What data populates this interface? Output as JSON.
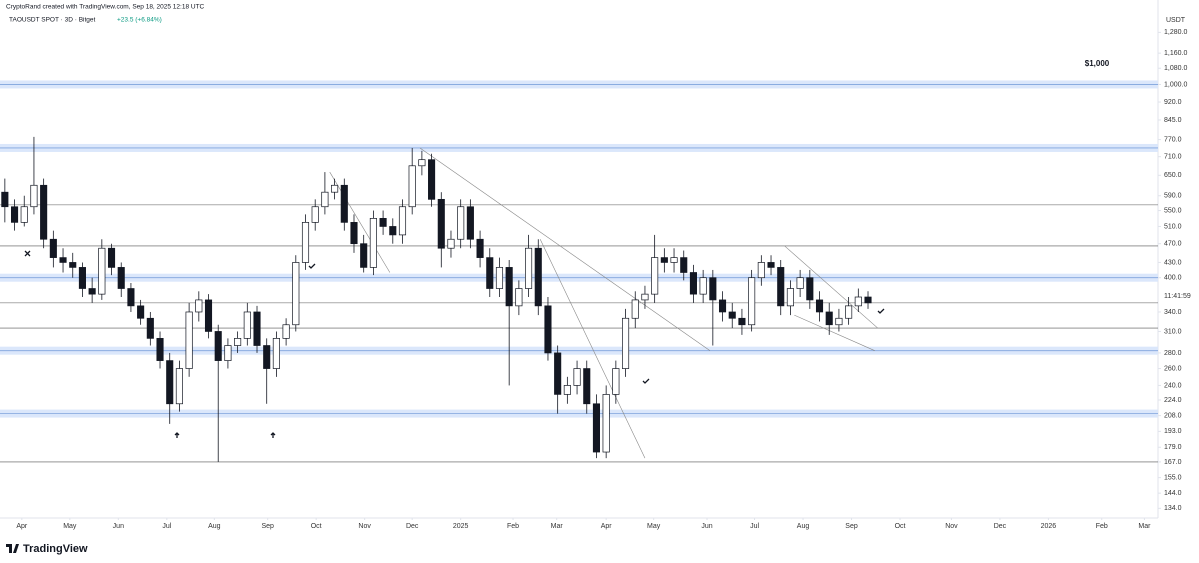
{
  "header": {
    "credit": "CryptoRand created with TradingView.com, Sep 18, 2025 12:18 UTC",
    "symbol": "TAOUSDT SPOT · 3D · Bitget",
    "change": "+23.5 (+6.84%)"
  },
  "brand": "TradingView",
  "chart_data": {
    "type": "candlestick",
    "unit": "USDT",
    "log_scale": true,
    "grid": false,
    "up_color": "#ffffff",
    "down_color": "#131722",
    "border_color": "#131722",
    "annotation": "$1,000",
    "countdown": "11:41:59",
    "ylim": [
      128,
      1410
    ],
    "xlim": [
      -0.5,
      118.9
    ],
    "yticks": [
      {
        "value": 1280,
        "label": "1,280.0"
      },
      {
        "value": 1160,
        "label": "1,160.0"
      },
      {
        "value": 1080,
        "label": "1,080.0"
      },
      {
        "value": 1000,
        "label": "1,000.0"
      },
      {
        "value": 920,
        "label": "920.0"
      },
      {
        "value": 845,
        "label": "845.0"
      },
      {
        "value": 770,
        "label": "770.0"
      },
      {
        "value": 710,
        "label": "710.0"
      },
      {
        "value": 650,
        "label": "650.0"
      },
      {
        "value": 590,
        "label": "590.0"
      },
      {
        "value": 550,
        "label": "550.0"
      },
      {
        "value": 510,
        "label": "510.0"
      },
      {
        "value": 470,
        "label": "470.0"
      },
      {
        "value": 430,
        "label": "430.0"
      },
      {
        "value": 400,
        "label": "400.0"
      },
      {
        "value": 340,
        "label": "340.0"
      },
      {
        "value": 310,
        "label": "310.0"
      },
      {
        "value": 280,
        "label": "280.0"
      },
      {
        "value": 260,
        "label": "260.0"
      },
      {
        "value": 240,
        "label": "240.0"
      },
      {
        "value": 224,
        "label": "224.0"
      },
      {
        "value": 208,
        "label": "208.0"
      },
      {
        "value": 193,
        "label": "193.0"
      },
      {
        "value": 179,
        "label": "179.0"
      },
      {
        "value": 167,
        "label": "167.0"
      },
      {
        "value": 155,
        "label": "155.0"
      },
      {
        "value": 144,
        "label": "144.0"
      },
      {
        "value": 134,
        "label": "134.0"
      }
    ],
    "xticks": [
      {
        "value": 1.75,
        "label": "Apr"
      },
      {
        "value": 6.7,
        "label": "May"
      },
      {
        "value": 11.7,
        "label": "Jun"
      },
      {
        "value": 16.7,
        "label": "Jul"
      },
      {
        "value": 21.6,
        "label": "Aug"
      },
      {
        "value": 27.1,
        "label": "Sep"
      },
      {
        "value": 32.1,
        "label": "Oct"
      },
      {
        "value": 37.1,
        "label": "Nov"
      },
      {
        "value": 42,
        "label": "Dec"
      },
      {
        "value": 47,
        "label": "2025"
      },
      {
        "value": 52.4,
        "label": "Feb"
      },
      {
        "value": 56.9,
        "label": "Mar"
      },
      {
        "value": 62,
        "label": "Apr"
      },
      {
        "value": 66.9,
        "label": "May"
      },
      {
        "value": 72.4,
        "label": "Jun"
      },
      {
        "value": 77.3,
        "label": "Jul"
      },
      {
        "value": 82.3,
        "label": "Aug"
      },
      {
        "value": 87.3,
        "label": "Sep"
      },
      {
        "value": 92.3,
        "label": "Oct"
      },
      {
        "value": 97.6,
        "label": "Nov"
      },
      {
        "value": 102.6,
        "label": "Dec"
      },
      {
        "value": 107.6,
        "label": "2026"
      },
      {
        "value": 113.1,
        "label": "Feb"
      },
      {
        "value": 117.5,
        "label": "Mar"
      }
    ],
    "zones": [
      1000,
      740,
      400,
      283,
      210
    ],
    "levels": [
      565,
      465,
      355,
      315,
      167
    ],
    "trendlines": [
      [
        [
          42.8,
          740
        ],
        [
          72.7,
          283
        ]
      ],
      [
        [
          33.5,
          660
        ],
        [
          39.7,
          410
        ]
      ],
      [
        [
          55.2,
          480
        ],
        [
          66,
          170
        ]
      ],
      [
        [
          80.4,
          465
        ],
        [
          90,
          315
        ]
      ],
      [
        [
          81.4,
          335
        ],
        [
          89.7,
          283
        ]
      ]
    ],
    "ohlc": [
      [
        600,
        640,
        520,
        560
      ],
      [
        560,
        580,
        500,
        520
      ],
      [
        520,
        590,
        510,
        560
      ],
      [
        560,
        780,
        540,
        620
      ],
      [
        620,
        640,
        460,
        480
      ],
      [
        480,
        500,
        420,
        440
      ],
      [
        440,
        460,
        410,
        430
      ],
      [
        430,
        450,
        400,
        420
      ],
      [
        420,
        430,
        365,
        380
      ],
      [
        380,
        400,
        355,
        370
      ],
      [
        370,
        480,
        360,
        460
      ],
      [
        460,
        470,
        405,
        420
      ],
      [
        420,
        430,
        365,
        380
      ],
      [
        380,
        390,
        340,
        350
      ],
      [
        350,
        360,
        320,
        330
      ],
      [
        330,
        340,
        290,
        300
      ],
      [
        300,
        310,
        260,
        270
      ],
      [
        270,
        280,
        200,
        220
      ],
      [
        220,
        270,
        212,
        260
      ],
      [
        260,
        355,
        250,
        340
      ],
      [
        340,
        375,
        325,
        360
      ],
      [
        360,
        370,
        300,
        310
      ],
      [
        310,
        320,
        167,
        270
      ],
      [
        270,
        300,
        260,
        290
      ],
      [
        290,
        310,
        280,
        300
      ],
      [
        300,
        355,
        290,
        340
      ],
      [
        340,
        350,
        280,
        290
      ],
      [
        290,
        300,
        220,
        260
      ],
      [
        260,
        310,
        250,
        300
      ],
      [
        300,
        330,
        290,
        320
      ],
      [
        320,
        445,
        310,
        430
      ],
      [
        430,
        540,
        415,
        520
      ],
      [
        520,
        580,
        500,
        560
      ],
      [
        560,
        660,
        540,
        600
      ],
      [
        600,
        640,
        580,
        620
      ],
      [
        620,
        640,
        500,
        520
      ],
      [
        520,
        540,
        450,
        470
      ],
      [
        470,
        490,
        410,
        420
      ],
      [
        420,
        550,
        405,
        530
      ],
      [
        530,
        550,
        490,
        510
      ],
      [
        510,
        530,
        470,
        490
      ],
      [
        490,
        580,
        470,
        560
      ],
      [
        560,
        740,
        540,
        680
      ],
      [
        680,
        730,
        650,
        700
      ],
      [
        700,
        720,
        560,
        580
      ],
      [
        580,
        600,
        420,
        460
      ],
      [
        460,
        500,
        440,
        480
      ],
      [
        480,
        580,
        460,
        560
      ],
      [
        560,
        580,
        460,
        480
      ],
      [
        480,
        500,
        420,
        440
      ],
      [
        440,
        460,
        365,
        380
      ],
      [
        380,
        440,
        365,
        420
      ],
      [
        420,
        435,
        240,
        350
      ],
      [
        350,
        395,
        335,
        380
      ],
      [
        380,
        490,
        365,
        460
      ],
      [
        460,
        480,
        335,
        350
      ],
      [
        350,
        365,
        270,
        280
      ],
      [
        280,
        290,
        210,
        230
      ],
      [
        230,
        250,
        220,
        240
      ],
      [
        240,
        270,
        230,
        260
      ],
      [
        260,
        270,
        210,
        220
      ],
      [
        220,
        230,
        170,
        175
      ],
      [
        175,
        240,
        170,
        230
      ],
      [
        230,
        270,
        220,
        260
      ],
      [
        260,
        345,
        250,
        330
      ],
      [
        330,
        375,
        315,
        360
      ],
      [
        360,
        385,
        345,
        370
      ],
      [
        370,
        490,
        355,
        440
      ],
      [
        440,
        460,
        410,
        430
      ],
      [
        430,
        460,
        410,
        440
      ],
      [
        440,
        455,
        395,
        410
      ],
      [
        410,
        425,
        355,
        370
      ],
      [
        370,
        415,
        355,
        400
      ],
      [
        400,
        415,
        290,
        360
      ],
      [
        360,
        375,
        325,
        340
      ],
      [
        340,
        355,
        315,
        330
      ],
      [
        330,
        345,
        305,
        320
      ],
      [
        320,
        415,
        310,
        400
      ],
      [
        400,
        445,
        385,
        430
      ],
      [
        430,
        445,
        405,
        420
      ],
      [
        420,
        435,
        335,
        350
      ],
      [
        350,
        395,
        335,
        380
      ],
      [
        380,
        415,
        365,
        400
      ],
      [
        400,
        415,
        345,
        360
      ],
      [
        360,
        375,
        325,
        340
      ],
      [
        340,
        355,
        305,
        320
      ],
      [
        320,
        345,
        310,
        330
      ],
      [
        330,
        365,
        320,
        350
      ],
      [
        350,
        380,
        340,
        365
      ],
      [
        365,
        375,
        345,
        355
      ]
    ]
  }
}
